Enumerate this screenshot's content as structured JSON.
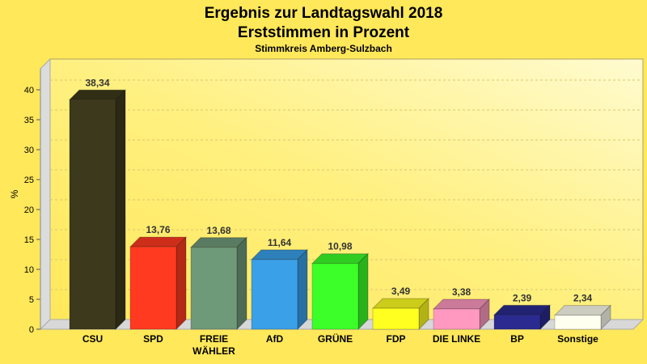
{
  "chart_data": {
    "type": "bar",
    "title": "Ergebnis zur Landtagswahl 2018",
    "subtitle": "Erststimmen in Prozent",
    "subtitle2": "Stimmkreis Amberg-Sulzbach",
    "ylabel": "%",
    "ylim": [
      0,
      40
    ],
    "yticks": [
      0,
      5,
      10,
      15,
      20,
      25,
      30,
      35,
      40
    ],
    "grid": true,
    "categories": [
      "CSU",
      "SPD",
      "FREIE WÄHLER",
      "AfD",
      "GRÜNE",
      "FDP",
      "DIE LINKE",
      "BP",
      "Sonstige"
    ],
    "values": [
      38.34,
      13.76,
      13.68,
      11.64,
      10.98,
      3.49,
      3.38,
      2.39,
      2.34
    ],
    "labels": [
      "38,34",
      "13,76",
      "13,68",
      "11,64",
      "10,98",
      "3,49",
      "3,38",
      "2,39",
      "2,34"
    ],
    "colors": [
      "#3d391c",
      "#ff3a20",
      "#6f9a7a",
      "#3aa0e8",
      "#3cff2a",
      "#ffff20",
      "#ff99c0",
      "#2a2a90",
      "#fffff0"
    ]
  }
}
